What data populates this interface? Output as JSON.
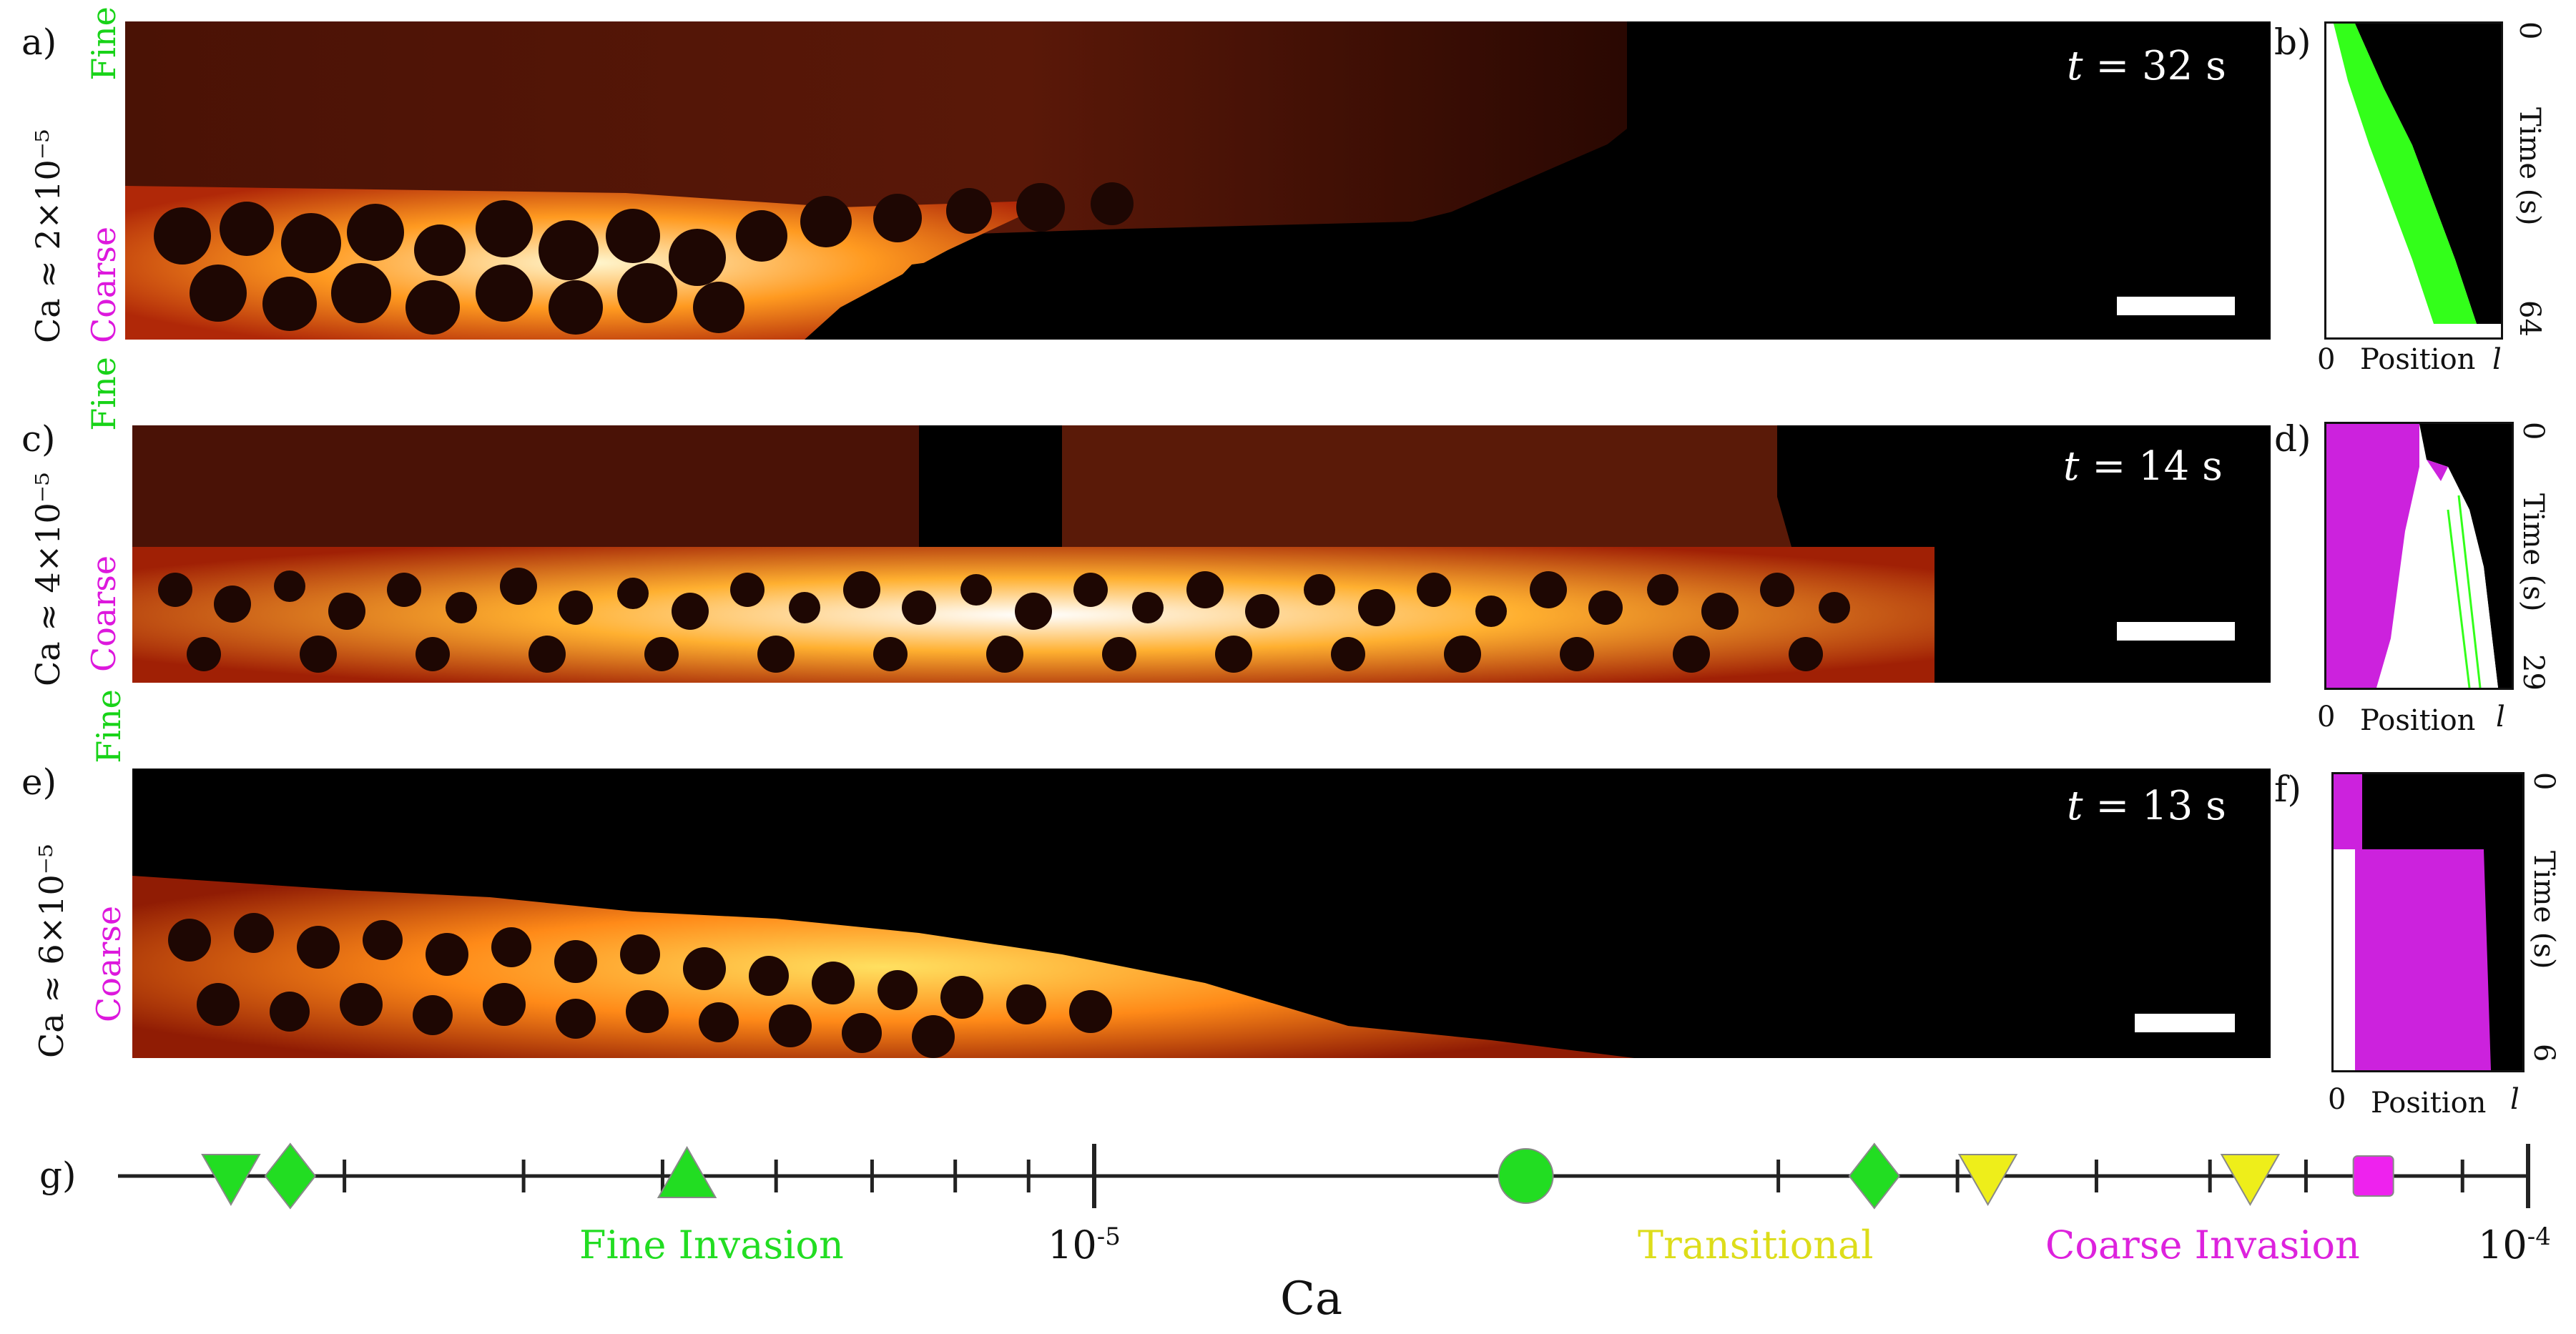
{
  "rows": [
    {
      "panel_label": "a)",
      "ca_label": "Ca ≈ 2×10⁻⁵",
      "fine_label": "Fine",
      "coarse_label": "Coarse",
      "time_text": "t",
      "time_value": "= 32 s",
      "kymo": {
        "panel_label": "b)",
        "x_start": "0",
        "x_label": "Position",
        "x_end": "l",
        "y_start": "0",
        "y_label": "Time (s)",
        "y_end": "64",
        "color": "#33ff1a"
      }
    },
    {
      "panel_label": "c)",
      "ca_label": "Ca ≈ 4×10⁻⁵",
      "fine_label": "Fine",
      "coarse_label": "Coarse",
      "time_text": "t",
      "time_value": "= 14 s",
      "kymo": {
        "panel_label": "d)",
        "x_start": "0",
        "x_label": "Position",
        "x_end": "l",
        "y_start": "0",
        "y_label": "Time (s)",
        "y_end": "29",
        "color": "#cc22dd"
      }
    },
    {
      "panel_label": "e)",
      "ca_label": "Ca ≈ 6×10⁻⁵",
      "fine_label": "Fine",
      "coarse_label": "Coarse",
      "time_text": "t",
      "time_value": "= 13 s",
      "kymo": {
        "panel_label": "f)",
        "x_start": "0",
        "x_label": "Position",
        "x_end": "l",
        "y_start": "0",
        "y_label": "Time (s)",
        "y_end": "6",
        "color": "#cc22dd"
      }
    }
  ],
  "axis": {
    "panel_label": "g)",
    "label": "Ca",
    "scale": "log",
    "range": [
      "10^-6",
      "10^-4"
    ],
    "tick_label_1": {
      "base": "10",
      "exp": "-5"
    },
    "tick_label_2": {
      "base": "10",
      "exp": "-4"
    },
    "categories": [
      {
        "name": "Fine Invasion",
        "color": "#22dd22"
      },
      {
        "name": "Transitional",
        "color": "#dddd1a"
      },
      {
        "name": "Coarse Invasion",
        "color": "#dd22dd"
      }
    ],
    "markers": [
      {
        "ca": 2.5e-06,
        "shape": "triangle-down",
        "color": "#22dd22"
      },
      {
        "ca": 2.75e-06,
        "shape": "diamond",
        "color": "#22dd22"
      },
      {
        "ca": 5.2e-06,
        "shape": "triangle-up",
        "color": "#22dd22"
      },
      {
        "ca": 2e-05,
        "shape": "circle",
        "color": "#22dd22"
      },
      {
        "ca": 3.5e-05,
        "shape": "diamond",
        "color": "#22dd22"
      },
      {
        "ca": 4.2e-05,
        "shape": "triangle-down",
        "color": "#eeee1a"
      },
      {
        "ca": 6.4e-05,
        "shape": "triangle-down",
        "color": "#eeee1a"
      },
      {
        "ca": 7.8e-05,
        "shape": "square",
        "color": "#ee22ee"
      }
    ]
  },
  "chart_data": {
    "type": "scatter",
    "xlabel": "Ca",
    "xscale": "log",
    "xlim": [
      1e-06,
      0.0001
    ],
    "legend": [
      "Fine Invasion",
      "Transitional",
      "Coarse Invasion"
    ],
    "points": [
      {
        "x": 2.5e-06,
        "category": "Fine Invasion"
      },
      {
        "x": 2.75e-06,
        "category": "Fine Invasion"
      },
      {
        "x": 5.2e-06,
        "category": "Fine Invasion"
      },
      {
        "x": 2e-05,
        "category": "Fine Invasion"
      },
      {
        "x": 3.5e-05,
        "category": "Fine Invasion"
      },
      {
        "x": 4.2e-05,
        "category": "Transitional"
      },
      {
        "x": 6.4e-05,
        "category": "Transitional"
      },
      {
        "x": 7.8e-05,
        "category": "Coarse Invasion"
      }
    ]
  }
}
